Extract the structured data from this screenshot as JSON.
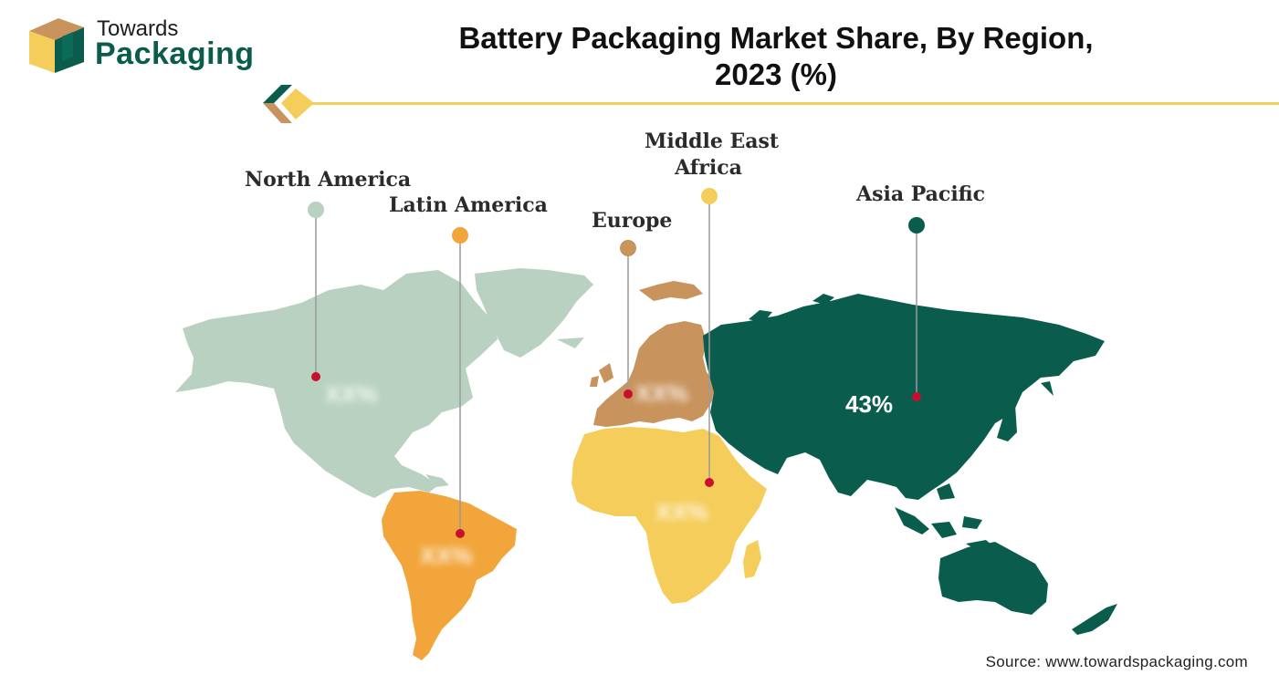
{
  "brand": {
    "line1": "Towards",
    "line2": "Packaging"
  },
  "title": "Battery Packaging Market Share, By Region, 2023 (%)",
  "title_line1": "Battery Packaging Market Share, By Region,",
  "title_line2": "2023 (%)",
  "source": "Source: www.towardspackaging.com",
  "colors": {
    "north_america": "#b8d1c0",
    "latin_america": "#f2a53a",
    "europe": "#c8935c",
    "middle_east_africa": "#f5cd5a",
    "asia_pacific": "#0a5c4c",
    "pin_dot": "#c8102e",
    "divider": "#f0cf5b"
  },
  "chart_data": {
    "type": "map",
    "title": "Battery Packaging Market Share, By Region, 2023 (%)",
    "regions": [
      {
        "name": "North America",
        "value_text": "XX%",
        "color": "#b8d1c0"
      },
      {
        "name": "Latin America",
        "value_text": "XX%",
        "color": "#f2a53a"
      },
      {
        "name": "Europe",
        "value_text": "XX%",
        "color": "#c8935c"
      },
      {
        "name": "Middle East Africa",
        "value_text": "XX%",
        "color": "#f5cd5a"
      },
      {
        "name": "Asia Pacific",
        "value": 43,
        "value_text": "43%",
        "color": "#0a5c4c"
      }
    ]
  },
  "labels": {
    "north_america": "North America",
    "latin_america": "Latin America",
    "europe": "Europe",
    "mea_line1": "Middle East",
    "mea_line2": "Africa",
    "asia_pacific": "Asia Pacific"
  },
  "values": {
    "north_america": "XX%",
    "latin_america": "XX%",
    "europe": "XX%",
    "middle_east_africa": "XX%",
    "asia_pacific": "43%"
  }
}
